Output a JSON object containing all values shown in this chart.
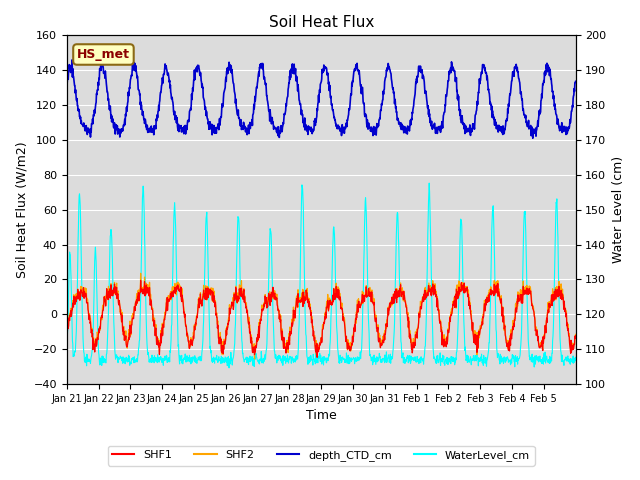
{
  "title": "Soil Heat Flux",
  "xlabel": "Time",
  "ylabel_left": "Soil Heat Flux (W/m2)",
  "ylabel_right": "Water Level (cm)",
  "ylim_left": [
    -40,
    160
  ],
  "ylim_right": [
    100,
    200
  ],
  "yticks_left": [
    -40,
    -20,
    0,
    20,
    40,
    60,
    80,
    100,
    120,
    140,
    160
  ],
  "yticks_right": [
    100,
    110,
    120,
    130,
    140,
    150,
    160,
    170,
    180,
    190,
    200
  ],
  "xtick_labels": [
    "Jan 21",
    "Jan 22",
    "Jan 23",
    "Jan 24",
    "Jan 25",
    "Jan 26",
    "Jan 27",
    "Jan 28",
    "Jan 29",
    "Jan 30",
    "Jan 31",
    "Feb 1",
    "Feb 2",
    "Feb 3",
    "Feb 4",
    "Feb 5"
  ],
  "annotation_text": "HS_met",
  "annotation_color": "#8B0000",
  "annotation_bg": "#FFFFC0",
  "annotation_edge": "#8B6914",
  "bg_color": "#DCDCDC",
  "colors": {
    "SHF1": "#FF0000",
    "SHF2": "#FFA500",
    "depth_CTD_cm": "#0000CD",
    "WaterLevel_cm": "#00FFFF"
  },
  "n_points": 1440,
  "n_days": 16
}
